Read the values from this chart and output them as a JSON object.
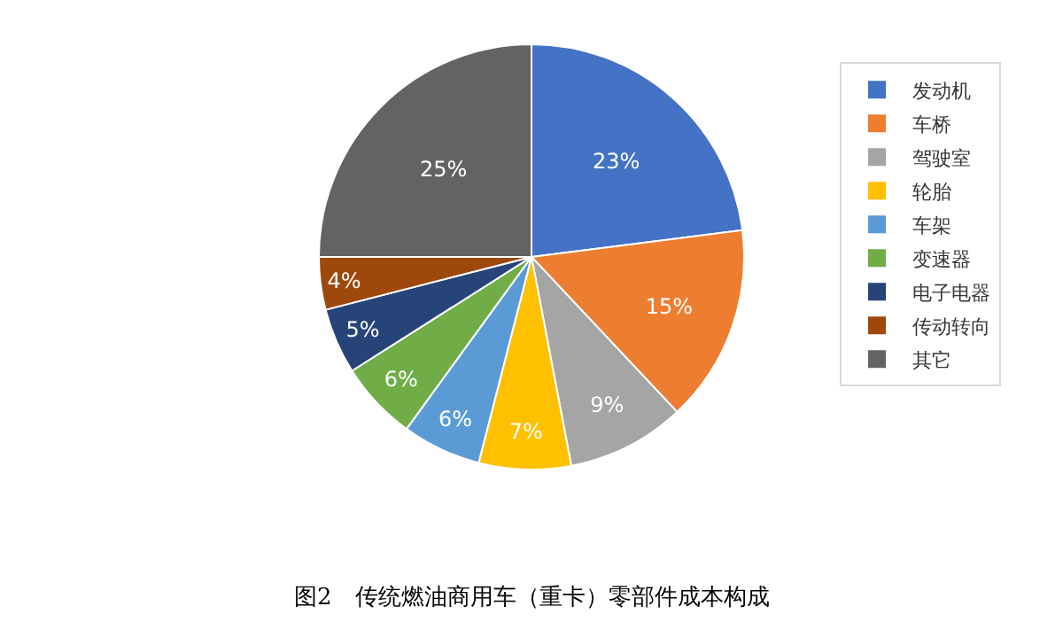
{
  "chart_data": {
    "type": "pie",
    "title": "图2　传统燃油商用车（重卡）零部件成本构成",
    "categories": [
      "发动机",
      "车桥",
      "驾驶室",
      "轮胎",
      "车架",
      "变速器",
      "电子电器",
      "传动转向",
      "其它"
    ],
    "values": [
      23,
      15,
      9,
      7,
      6,
      6,
      5,
      4,
      25
    ],
    "value_labels": [
      "23%",
      "15%",
      "9%",
      "7%",
      "6%",
      "6%",
      "5%",
      "4%",
      "25%"
    ],
    "colors": [
      "#4472c4",
      "#ed7d31",
      "#a5a5a5",
      "#ffc000",
      "#5b9bd5",
      "#70ad47",
      "#264478",
      "#9e480e",
      "#636363"
    ],
    "legend": "right"
  }
}
